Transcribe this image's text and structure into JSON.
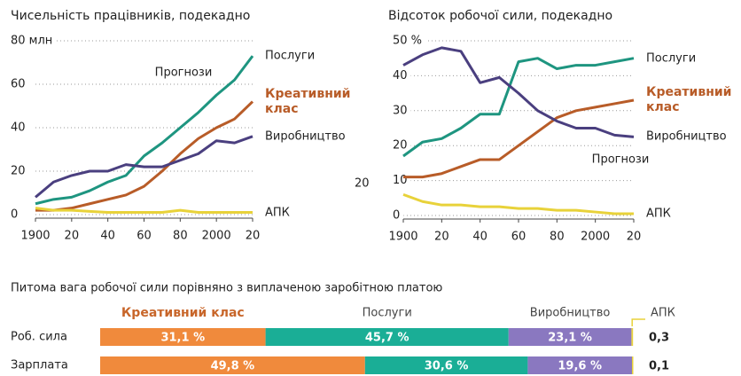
{
  "extra_label": "20",
  "chart_data": [
    {
      "type": "line",
      "title": "Чисельність працівників, подекадно",
      "annotation": "Прогнози",
      "x": [
        1900,
        1910,
        1920,
        1930,
        1940,
        1950,
        1960,
        1970,
        1980,
        1990,
        2000,
        2010,
        2020
      ],
      "xlim": [
        1900,
        2020
      ],
      "xticks": [
        1900,
        {
          "value": 1920,
          "label": "20"
        },
        {
          "value": 1940,
          "label": "40"
        },
        {
          "value": 1960,
          "label": "60"
        },
        {
          "value": 1980,
          "label": "80"
        },
        2000,
        {
          "value": 2020,
          "label": "20"
        }
      ],
      "ylim": [
        0,
        80
      ],
      "yticks": [
        0,
        20,
        40,
        60,
        {
          "value": 80,
          "label": "80 млн"
        }
      ],
      "grid": true,
      "series": [
        {
          "name": "Послуги",
          "color": "#1e9580",
          "values": [
            5,
            7,
            8,
            11,
            15,
            18,
            27,
            33,
            40,
            47,
            55,
            62,
            73
          ]
        },
        {
          "name": "Креативний клас",
          "color": "#b85c28",
          "values": [
            2,
            2,
            3,
            5,
            7,
            9,
            13,
            20,
            28,
            35,
            40,
            44,
            52
          ]
        },
        {
          "name": "Виробництво",
          "color": "#4a3f7f",
          "values": [
            8,
            15,
            18,
            20,
            20,
            23,
            22,
            22,
            25,
            28,
            34,
            33,
            36
          ]
        },
        {
          "name": "АПК",
          "color": "#e8d23a",
          "values": [
            3,
            2,
            2,
            1.5,
            1,
            1,
            1,
            1,
            2,
            1,
            1,
            1,
            1
          ]
        }
      ]
    },
    {
      "type": "line",
      "title": "Відсоток робочої сили, подекадно",
      "annotation": "Прогнози",
      "x": [
        1900,
        1910,
        1920,
        1930,
        1940,
        1950,
        1960,
        1970,
        1980,
        1990,
        2000,
        2010,
        2020
      ],
      "xlim": [
        1900,
        2020
      ],
      "xticks": [
        1900,
        {
          "value": 1920,
          "label": "20"
        },
        {
          "value": 1940,
          "label": "40"
        },
        {
          "value": 1960,
          "label": "60"
        },
        {
          "value": 1980,
          "label": "80"
        },
        2000,
        {
          "value": 2020,
          "label": "20"
        }
      ],
      "ylim": [
        0,
        50
      ],
      "yticks": [
        0,
        10,
        20,
        30,
        40,
        {
          "value": 50,
          "label": "50 %"
        }
      ],
      "grid": true,
      "series": [
        {
          "name": "Послуги",
          "color": "#1e9580",
          "values": [
            17,
            21,
            22,
            25,
            29,
            29,
            44,
            45,
            42,
            43,
            43,
            44,
            45
          ]
        },
        {
          "name": "Креативний клас",
          "color": "#b85c28",
          "values": [
            11,
            11,
            12,
            14,
            16,
            16,
            20,
            24,
            28,
            30,
            31,
            32,
            33
          ]
        },
        {
          "name": "Виробництво",
          "color": "#4a3f7f",
          "values": [
            43,
            46,
            48,
            47,
            38,
            39.5,
            35,
            30,
            27,
            25,
            25,
            23,
            22.5
          ]
        },
        {
          "name": "АПК",
          "color": "#e8d23a",
          "values": [
            6,
            4,
            3,
            3,
            2.5,
            2.5,
            2,
            2,
            1.5,
            1.5,
            1,
            0.5,
            0.5
          ]
        }
      ]
    },
    {
      "type": "stacked_barh",
      "title": "Питома вага робочої сили порівняно з виплаченою заробітною платою",
      "categories": [
        "Роб. сила",
        "Зарплата"
      ],
      "xlim": [
        0,
        100
      ],
      "series": [
        {
          "name": "Креативний клас",
          "color": "#f08a3c",
          "values": [
            31.1,
            49.8
          ],
          "value_labels": [
            "31,1 %",
            "49,8 %"
          ]
        },
        {
          "name": "Послуги",
          "color": "#1aae96",
          "values": [
            45.7,
            30.6
          ],
          "value_labels": [
            "45,7 %",
            "30,6 %"
          ]
        },
        {
          "name": "Виробництво",
          "color": "#8a78c0",
          "values": [
            23.1,
            19.6
          ],
          "value_labels": [
            "23,1 %",
            "19,6 %"
          ]
        },
        {
          "name": "АПК",
          "color": "#e8d23a",
          "values": [
            0.3,
            0.1
          ],
          "value_labels": [
            "0,3",
            "0,1"
          ]
        }
      ]
    }
  ]
}
